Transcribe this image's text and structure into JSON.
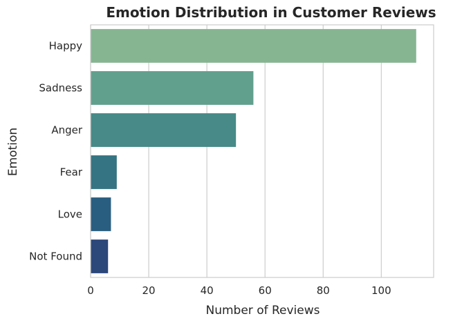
{
  "chart_data": {
    "type": "bar",
    "orientation": "horizontal",
    "title": "Emotion Distribution in Customer Reviews",
    "xlabel": "Number of Reviews",
    "ylabel": "Emotion",
    "categories": [
      "Happy",
      "Sadness",
      "Anger",
      "Fear",
      "Love",
      "Not Found"
    ],
    "values": [
      112,
      56,
      50,
      9,
      7,
      6
    ],
    "colors": [
      "#86b592",
      "#61a08c",
      "#478a87",
      "#357482",
      "#2a5e80",
      "#2c477a"
    ],
    "xlim": [
      0,
      118
    ],
    "xticks": [
      0,
      20,
      40,
      60,
      80,
      100
    ],
    "grid": true,
    "grid_axis": "x"
  }
}
